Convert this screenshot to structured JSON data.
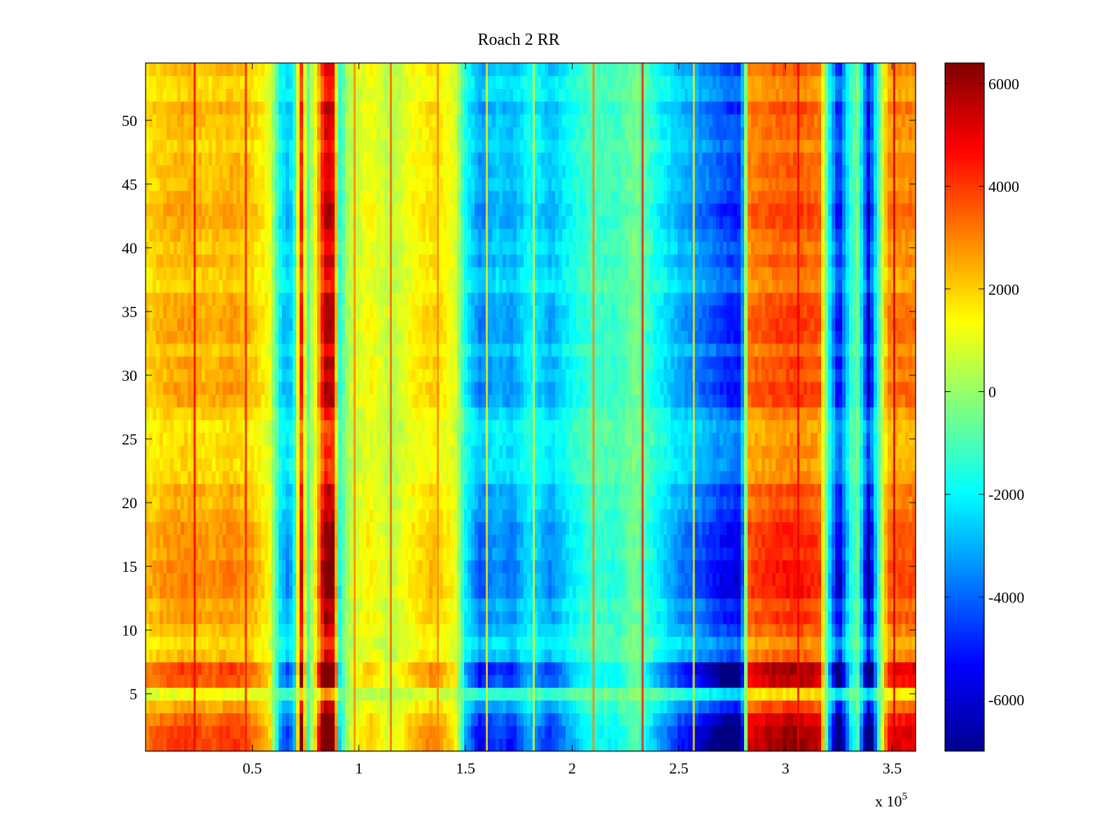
{
  "chart_data": {
    "type": "heatmap",
    "title": "Roach 2 RR",
    "xlabel": "",
    "ylabel": "",
    "x_multiplier_label": {
      "base": "x 10",
      "exponent": "5"
    },
    "xlim": [
      0,
      361000
    ],
    "ylim": [
      0.5,
      54.5
    ],
    "x_ticks": [
      {
        "value": 50000,
        "label": "0.5"
      },
      {
        "value": 100000,
        "label": "1"
      },
      {
        "value": 150000,
        "label": "1.5"
      },
      {
        "value": 200000,
        "label": "2"
      },
      {
        "value": 250000,
        "label": "2.5"
      },
      {
        "value": 300000,
        "label": "3"
      },
      {
        "value": 350000,
        "label": "3.5"
      }
    ],
    "y_ticks": [
      {
        "value": 5,
        "label": "5"
      },
      {
        "value": 10,
        "label": "10"
      },
      {
        "value": 15,
        "label": "15"
      },
      {
        "value": 20,
        "label": "20"
      },
      {
        "value": 25,
        "label": "25"
      },
      {
        "value": 30,
        "label": "30"
      },
      {
        "value": 35,
        "label": "35"
      },
      {
        "value": 40,
        "label": "40"
      },
      {
        "value": 45,
        "label": "45"
      },
      {
        "value": 50,
        "label": "50"
      }
    ],
    "colormap": "jet",
    "colorbar": {
      "range": [
        -7000,
        6400
      ],
      "ticks": [
        {
          "value": 6000,
          "label": "6000"
        },
        {
          "value": 4000,
          "label": "4000"
        },
        {
          "value": 2000,
          "label": "2000"
        },
        {
          "value": 0,
          "label": "0"
        },
        {
          "value": -2000,
          "label": "-2000"
        },
        {
          "value": -4000,
          "label": "-4000"
        },
        {
          "value": -6000,
          "label": "-6000"
        }
      ]
    },
    "rows": 54,
    "column_profile": [
      {
        "x": 0,
        "value": 1800
      },
      {
        "x": 10000,
        "value": 2200
      },
      {
        "x": 20000,
        "value": 2400
      },
      {
        "x": 30000,
        "value": 2100
      },
      {
        "x": 40000,
        "value": 2400
      },
      {
        "x": 50000,
        "value": 2000
      },
      {
        "x": 58000,
        "value": 1200
      },
      {
        "x": 63000,
        "value": -2000
      },
      {
        "x": 67000,
        "value": -2800
      },
      {
        "x": 70000,
        "value": -1500
      },
      {
        "x": 73000,
        "value": 4200
      },
      {
        "x": 76000,
        "value": -1000
      },
      {
        "x": 80000,
        "value": 1500
      },
      {
        "x": 84000,
        "value": 5200
      },
      {
        "x": 88000,
        "value": 5000
      },
      {
        "x": 91000,
        "value": -1500
      },
      {
        "x": 95000,
        "value": 400
      },
      {
        "x": 105000,
        "value": 1300
      },
      {
        "x": 115000,
        "value": 400
      },
      {
        "x": 125000,
        "value": 1300
      },
      {
        "x": 135000,
        "value": 1800
      },
      {
        "x": 145000,
        "value": 1000
      },
      {
        "x": 150000,
        "value": -1800
      },
      {
        "x": 157000,
        "value": -3300
      },
      {
        "x": 165000,
        "value": -2600
      },
      {
        "x": 172000,
        "value": -3000
      },
      {
        "x": 180000,
        "value": -1800
      },
      {
        "x": 190000,
        "value": -2800
      },
      {
        "x": 200000,
        "value": -1700
      },
      {
        "x": 210000,
        "value": -1000
      },
      {
        "x": 220000,
        "value": -1200
      },
      {
        "x": 230000,
        "value": -400
      },
      {
        "x": 240000,
        "value": -1800
      },
      {
        "x": 250000,
        "value": -2800
      },
      {
        "x": 260000,
        "value": -3400
      },
      {
        "x": 270000,
        "value": -4200
      },
      {
        "x": 279000,
        "value": -4600
      },
      {
        "x": 283000,
        "value": 3000
      },
      {
        "x": 295000,
        "value": 3400
      },
      {
        "x": 305000,
        "value": 3600
      },
      {
        "x": 316000,
        "value": 3200
      },
      {
        "x": 320000,
        "value": -1500
      },
      {
        "x": 325000,
        "value": -5200
      },
      {
        "x": 330000,
        "value": -1500
      },
      {
        "x": 334000,
        "value": -600
      },
      {
        "x": 339000,
        "value": -5600
      },
      {
        "x": 343000,
        "value": -1500
      },
      {
        "x": 348000,
        "value": 2800
      },
      {
        "x": 361000,
        "value": 3000
      }
    ],
    "row_profile": [
      {
        "y": 1,
        "value": 1.7
      },
      {
        "y": 3,
        "value": 1.5
      },
      {
        "y": 5,
        "value": 0.6
      },
      {
        "y": 6.5,
        "value": 2.0
      },
      {
        "y": 8.5,
        "value": 0.7
      },
      {
        "y": 10,
        "value": 1.0
      },
      {
        "y": 12,
        "value": 1.2
      },
      {
        "y": 14,
        "value": 1.3
      },
      {
        "y": 16,
        "value": 1.1
      },
      {
        "y": 18,
        "value": 1.2
      },
      {
        "y": 20,
        "value": 1.1
      },
      {
        "y": 23,
        "value": 0.9
      },
      {
        "y": 26,
        "value": 0.8
      },
      {
        "y": 29,
        "value": 1.1
      },
      {
        "y": 32,
        "value": 1.0
      },
      {
        "y": 35,
        "value": 1.1
      },
      {
        "y": 38,
        "value": 0.9
      },
      {
        "y": 41,
        "value": 1.0
      },
      {
        "y": 44,
        "value": 1.1
      },
      {
        "y": 47,
        "value": 0.9
      },
      {
        "y": 50,
        "value": 1.1
      },
      {
        "y": 53,
        "value": 0.9
      }
    ],
    "vertical_streaks": [
      {
        "x": 23000,
        "value": 5000
      },
      {
        "x": 47000,
        "value": 4500
      },
      {
        "x": 98000,
        "value": 3000
      },
      {
        "x": 115000,
        "value": 3500
      },
      {
        "x": 137000,
        "value": 3000
      },
      {
        "x": 160000,
        "value": 1500
      },
      {
        "x": 182000,
        "value": 1000
      },
      {
        "x": 210000,
        "value": 3000
      },
      {
        "x": 233000,
        "value": 4500
      },
      {
        "x": 257000,
        "value": 1500
      },
      {
        "x": 306000,
        "value": 5000
      },
      {
        "x": 351000,
        "value": 5500
      }
    ]
  }
}
